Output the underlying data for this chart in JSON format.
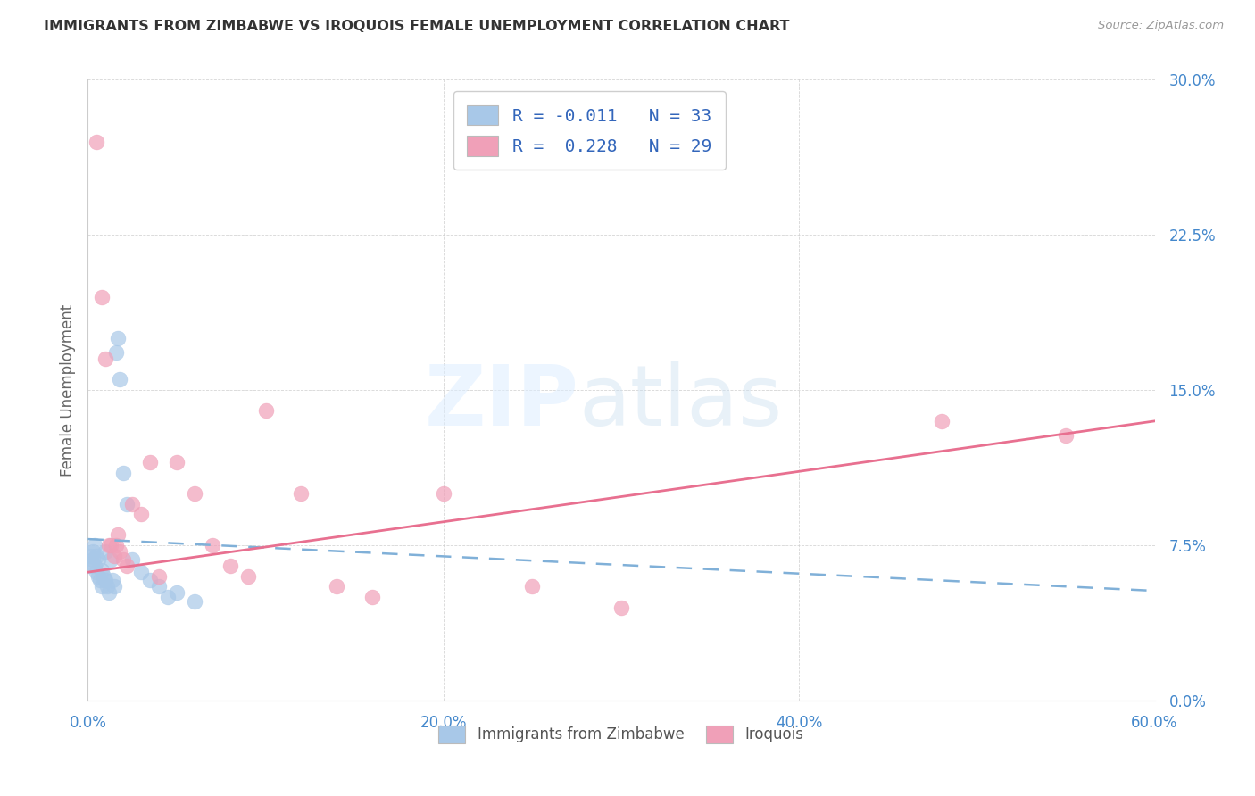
{
  "title": "IMMIGRANTS FROM ZIMBABWE VS IROQUOIS FEMALE UNEMPLOYMENT CORRELATION CHART",
  "source": "Source: ZipAtlas.com",
  "ylabel": "Female Unemployment",
  "xlim": [
    0.0,
    0.6
  ],
  "ylim": [
    0.0,
    0.3
  ],
  "xticks": [
    0.0,
    0.2,
    0.4,
    0.6
  ],
  "yticks": [
    0.0,
    0.075,
    0.15,
    0.225,
    0.3
  ],
  "ytick_labels": [
    "0.0%",
    "7.5%",
    "15.0%",
    "22.5%",
    "30.0%"
  ],
  "xtick_labels": [
    "0.0%",
    "20.0%",
    "40.0%",
    "60.0%"
  ],
  "color_blue": "#a8c8e8",
  "color_pink": "#f0a0b8",
  "color_blue_line": "#80b0d8",
  "color_pink_line": "#e87090",
  "blue_scatter_x": [
    0.001,
    0.002,
    0.003,
    0.003,
    0.004,
    0.004,
    0.005,
    0.005,
    0.006,
    0.006,
    0.007,
    0.008,
    0.008,
    0.009,
    0.01,
    0.01,
    0.011,
    0.012,
    0.013,
    0.014,
    0.015,
    0.016,
    0.017,
    0.018,
    0.02,
    0.022,
    0.025,
    0.03,
    0.035,
    0.04,
    0.045,
    0.05,
    0.06
  ],
  "blue_scatter_y": [
    0.065,
    0.07,
    0.068,
    0.072,
    0.065,
    0.075,
    0.062,
    0.07,
    0.06,
    0.068,
    0.058,
    0.063,
    0.055,
    0.06,
    0.058,
    0.072,
    0.055,
    0.052,
    0.068,
    0.058,
    0.055,
    0.168,
    0.175,
    0.155,
    0.11,
    0.095,
    0.068,
    0.062,
    0.058,
    0.055,
    0.05,
    0.052,
    0.048
  ],
  "pink_scatter_x": [
    0.005,
    0.008,
    0.01,
    0.012,
    0.013,
    0.015,
    0.016,
    0.017,
    0.018,
    0.02,
    0.022,
    0.025,
    0.03,
    0.035,
    0.04,
    0.05,
    0.06,
    0.07,
    0.08,
    0.09,
    0.1,
    0.12,
    0.14,
    0.16,
    0.2,
    0.25,
    0.3,
    0.48,
    0.55
  ],
  "pink_scatter_y": [
    0.27,
    0.195,
    0.165,
    0.075,
    0.075,
    0.07,
    0.075,
    0.08,
    0.072,
    0.068,
    0.065,
    0.095,
    0.09,
    0.115,
    0.06,
    0.115,
    0.1,
    0.075,
    0.065,
    0.06,
    0.14,
    0.1,
    0.055,
    0.05,
    0.1,
    0.055,
    0.045,
    0.135,
    0.128
  ],
  "blue_trend_x0": 0.0,
  "blue_trend_x1": 0.6,
  "blue_trend_y0": 0.078,
  "blue_trend_y1": 0.053,
  "pink_trend_x0": 0.0,
  "pink_trend_x1": 0.6,
  "pink_trend_y0": 0.062,
  "pink_trend_y1": 0.135,
  "legend1_text": "R = -0.011   N = 33",
  "legend2_text": "R =  0.228   N = 29",
  "legend_bottom1": "Immigrants from Zimbabwe",
  "legend_bottom2": "Iroquois"
}
